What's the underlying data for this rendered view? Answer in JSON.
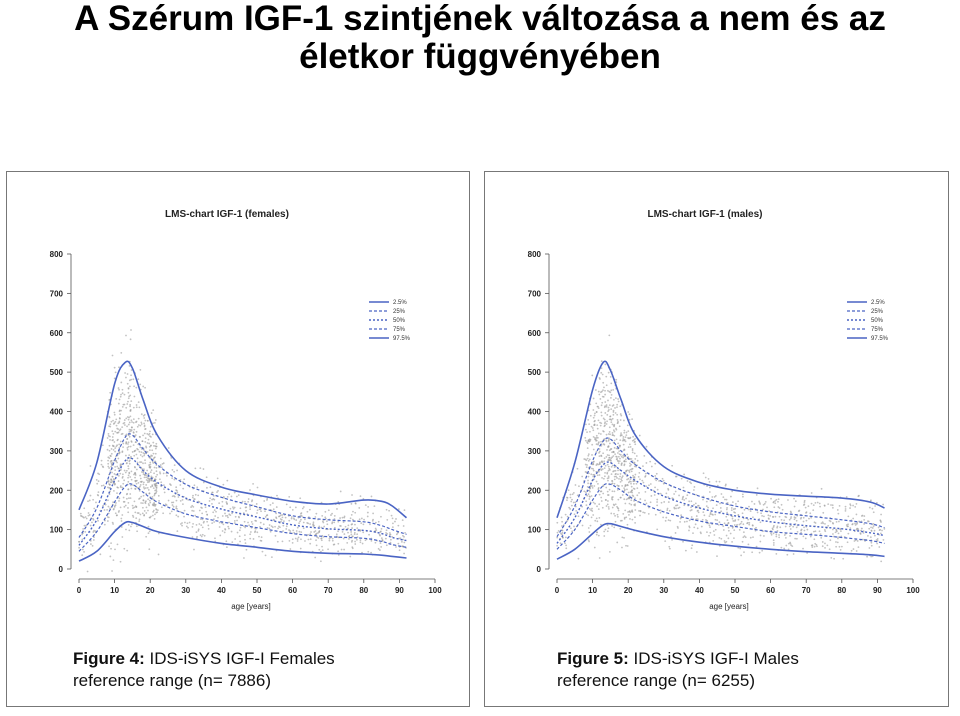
{
  "slide": {
    "title_line1": "A Szérum IGF-1 szintjének változása a nem és az",
    "title_line2": "életkor függvényében"
  },
  "panels": [
    {
      "figure_label": "Figure 4:",
      "figure_text": "IDS-iSYS IGF-I Females",
      "caption_line2": "reference range (n= 7886)"
    },
    {
      "figure_label": "Figure 5:",
      "figure_text": "IDS-iSYS IGF-I Males",
      "caption_line2": "reference range (n= 6255)"
    }
  ],
  "colors": {
    "line": "#4a64c4",
    "scatter": "#9a9a9a",
    "frame": "#555555"
  },
  "chart_data": [
    {
      "type": "line",
      "title": "LMS-chart IGF-1 (females)",
      "xlabel": "age [years]",
      "ylabel": "",
      "xlim": [
        0,
        100
      ],
      "ylim": [
        0,
        800
      ],
      "xticks": [
        0,
        10,
        20,
        30,
        40,
        50,
        60,
        70,
        80,
        90,
        100
      ],
      "yticks": [
        0,
        100,
        200,
        300,
        400,
        500,
        600,
        700,
        800
      ],
      "legend_position": "top-right",
      "x": [
        0,
        5,
        10,
        13,
        15,
        18,
        22,
        30,
        40,
        50,
        60,
        70,
        80,
        85,
        88,
        92
      ],
      "series": [
        {
          "name": "2.5%",
          "values": [
            20,
            45,
            95,
            118,
            118,
            108,
            95,
            80,
            65,
            55,
            45,
            40,
            38,
            35,
            32,
            28
          ]
        },
        {
          "name": "25%",
          "values": [
            45,
            95,
            170,
            210,
            215,
            195,
            170,
            140,
            120,
            105,
            90,
            82,
            78,
            70,
            62,
            55
          ]
        },
        {
          "name": "50%",
          "values": [
            60,
            125,
            225,
            275,
            280,
            250,
            220,
            180,
            152,
            132,
            112,
            102,
            98,
            90,
            80,
            72
          ]
        },
        {
          "name": "75%",
          "values": [
            80,
            155,
            275,
            335,
            340,
            305,
            265,
            215,
            182,
            158,
            135,
            125,
            120,
            110,
            100,
            88
          ]
        },
        {
          "name": "97.5%",
          "values": [
            150,
            270,
            470,
            525,
            510,
            430,
            340,
            250,
            208,
            188,
            172,
            165,
            175,
            172,
            160,
            130
          ]
        }
      ]
    },
    {
      "type": "line",
      "title": "LMS-chart IGF-1 (males)",
      "xlabel": "age [years]",
      "ylabel": "",
      "xlim": [
        0,
        100
      ],
      "ylim": [
        0,
        800
      ],
      "xticks": [
        0,
        10,
        20,
        30,
        40,
        50,
        60,
        70,
        80,
        90,
        100
      ],
      "yticks": [
        0,
        100,
        200,
        300,
        400,
        500,
        600,
        700,
        800
      ],
      "legend_position": "top-right",
      "x": [
        0,
        5,
        10,
        13,
        15,
        18,
        22,
        30,
        40,
        50,
        60,
        70,
        80,
        88,
        92
      ],
      "series": [
        {
          "name": "2.5%",
          "values": [
            25,
            50,
            90,
            112,
            115,
            108,
            98,
            82,
            68,
            58,
            50,
            44,
            40,
            36,
            32
          ]
        },
        {
          "name": "25%",
          "values": [
            50,
            100,
            175,
            212,
            215,
            200,
            175,
            145,
            122,
            108,
            95,
            88,
            80,
            72,
            65
          ]
        },
        {
          "name": "50%",
          "values": [
            65,
            130,
            225,
            265,
            270,
            250,
            225,
            185,
            155,
            135,
            120,
            110,
            102,
            92,
            85
          ]
        },
        {
          "name": "75%",
          "values": [
            82,
            160,
            275,
            325,
            330,
            300,
            265,
            220,
            185,
            160,
            145,
            135,
            125,
            115,
            105
          ]
        },
        {
          "name": "97.5%",
          "values": [
            130,
            270,
            455,
            525,
            505,
            430,
            340,
            260,
            220,
            200,
            190,
            185,
            180,
            170,
            155
          ]
        }
      ]
    }
  ]
}
